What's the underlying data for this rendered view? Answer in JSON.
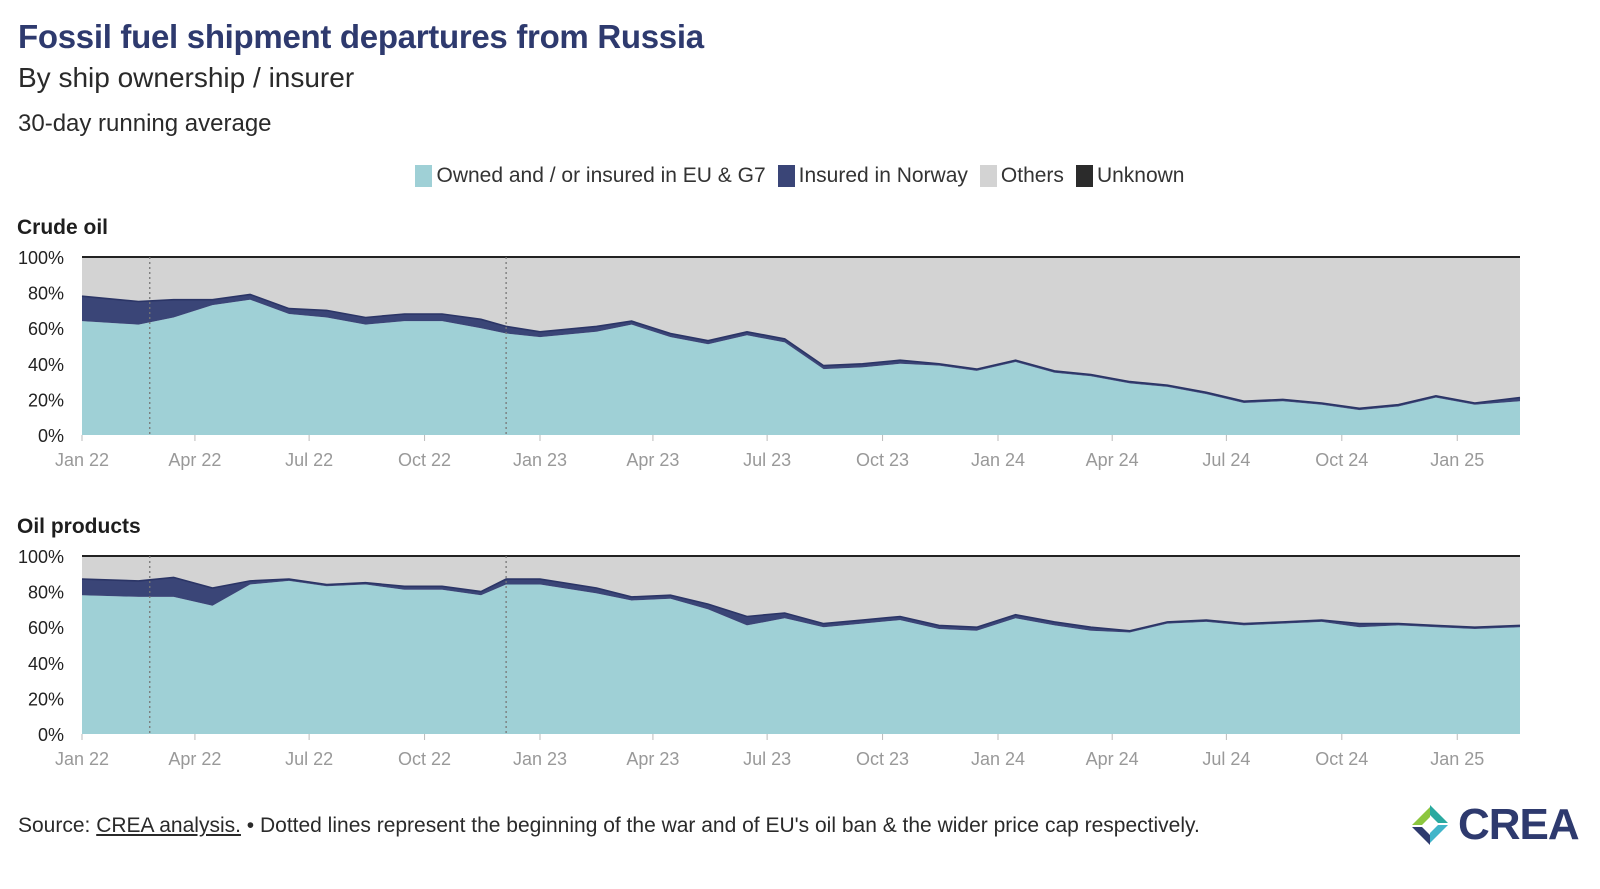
{
  "title": "Fossil fuel shipment departures from Russia",
  "subtitle": "By ship ownership / insurer",
  "note": "30-day running average",
  "legend": [
    {
      "label": "Owned and / or insured in EU & G7",
      "color": "#9fd0d6"
    },
    {
      "label": "Insured in Norway",
      "color": "#3a4577"
    },
    {
      "label": "Others",
      "color": "#d3d3d3"
    },
    {
      "label": "Unknown",
      "color": "#2b2b2b"
    }
  ],
  "footer": {
    "source_prefix": "Source: ",
    "source_link": "CREA analysis.",
    "text": " • Dotted lines represent the beginning of the war and of EU's oil ban & the wider price cap respectively."
  },
  "logo": {
    "text": "CREA"
  },
  "chart_data": [
    {
      "type": "area",
      "panel_title": "Crude oil",
      "x_ticks": [
        "Jan 22",
        "Apr 22",
        "Jul 22",
        "Oct 22",
        "Jan 23",
        "Apr 23",
        "Jul 23",
        "Oct 23",
        "Jan 24",
        "Apr 24",
        "Jul 24",
        "Oct 24",
        "Jan 25"
      ],
      "y_ticks": [
        "0%",
        "20%",
        "40%",
        "60%",
        "80%",
        "100%"
      ],
      "ylim": [
        0,
        100
      ],
      "event_lines": [
        "2022-02-24",
        "2022-12-05"
      ],
      "x": [
        "2022-01-01",
        "2022-02-15",
        "2022-03-15",
        "2022-04-15",
        "2022-05-15",
        "2022-06-15",
        "2022-07-15",
        "2022-08-15",
        "2022-09-15",
        "2022-10-15",
        "2022-11-15",
        "2022-12-05",
        "2023-01-01",
        "2023-02-15",
        "2023-03-15",
        "2023-04-15",
        "2023-05-15",
        "2023-06-15",
        "2023-07-15",
        "2023-08-15",
        "2023-09-15",
        "2023-10-15",
        "2023-11-15",
        "2023-12-15",
        "2024-01-15",
        "2024-02-15",
        "2024-03-15",
        "2024-04-15",
        "2024-05-15",
        "2024-06-15",
        "2024-07-15",
        "2024-08-15",
        "2024-09-15",
        "2024-10-15",
        "2024-11-15",
        "2024-12-15",
        "2025-01-15",
        "2025-02-20"
      ],
      "series": [
        {
          "name": "Owned and / or insured in EU & G7",
          "values": [
            64,
            62,
            66,
            73,
            76,
            68,
            66,
            62,
            64,
            64,
            60,
            57,
            55,
            58,
            62,
            55,
            51,
            56,
            52,
            37,
            38,
            40,
            39,
            36,
            41,
            35,
            33,
            29,
            27,
            23,
            18,
            19,
            17,
            14,
            16,
            21,
            17,
            19
          ]
        },
        {
          "name": "Insured in Norway",
          "values": [
            14,
            13,
            10,
            3,
            3,
            3,
            4,
            4,
            4,
            4,
            5,
            4,
            3,
            3,
            2,
            2,
            2,
            2,
            2,
            2,
            2,
            2,
            1,
            1,
            1,
            1,
            1,
            1,
            1,
            1,
            1,
            1,
            1,
            1,
            1,
            1,
            1,
            2
          ]
        },
        {
          "name": "Others",
          "values": [
            22,
            25,
            24,
            24,
            21,
            29,
            30,
            34,
            32,
            32,
            35,
            39,
            42,
            39,
            36,
            43,
            47,
            42,
            46,
            61,
            60,
            58,
            60,
            63,
            58,
            64,
            66,
            70,
            72,
            76,
            81,
            80,
            82,
            85,
            83,
            78,
            82,
            79
          ]
        },
        {
          "name": "Unknown",
          "values": [
            0,
            0,
            0,
            0,
            0,
            0,
            0,
            0,
            0,
            0,
            0,
            0,
            0,
            0,
            0,
            0,
            0,
            0,
            0,
            0,
            0,
            0,
            0,
            0,
            0,
            0,
            0,
            0,
            0,
            0,
            0,
            0,
            0,
            0,
            0,
            0,
            0,
            0
          ]
        }
      ]
    },
    {
      "type": "area",
      "panel_title": "Oil products",
      "x_ticks": [
        "Jan 22",
        "Apr 22",
        "Jul 22",
        "Oct 22",
        "Jan 23",
        "Apr 23",
        "Jul 23",
        "Oct 23",
        "Jan 24",
        "Apr 24",
        "Jul 24",
        "Oct 24",
        "Jan 25"
      ],
      "y_ticks": [
        "0%",
        "20%",
        "40%",
        "60%",
        "80%",
        "100%"
      ],
      "ylim": [
        0,
        100
      ],
      "event_lines": [
        "2022-02-24",
        "2022-12-05"
      ],
      "x": [
        "2022-01-01",
        "2022-02-15",
        "2022-03-15",
        "2022-04-15",
        "2022-05-15",
        "2022-06-15",
        "2022-07-15",
        "2022-08-15",
        "2022-09-15",
        "2022-10-15",
        "2022-11-15",
        "2022-12-05",
        "2023-01-01",
        "2023-02-15",
        "2023-03-15",
        "2023-04-15",
        "2023-05-15",
        "2023-06-15",
        "2023-07-15",
        "2023-08-15",
        "2023-09-15",
        "2023-10-15",
        "2023-11-15",
        "2023-12-15",
        "2024-01-15",
        "2024-02-15",
        "2024-03-15",
        "2024-04-15",
        "2024-05-15",
        "2024-06-15",
        "2024-07-15",
        "2024-08-15",
        "2024-09-15",
        "2024-10-15",
        "2024-11-15",
        "2024-12-15",
        "2025-01-15",
        "2025-02-20"
      ],
      "series": [
        {
          "name": "Owned and / or insured in EU & G7",
          "values": [
            78,
            77,
            77,
            72,
            84,
            86,
            83,
            84,
            81,
            81,
            78,
            84,
            84,
            79,
            75,
            76,
            70,
            61,
            65,
            60,
            62,
            64,
            59,
            58,
            65,
            61,
            58,
            57,
            62,
            63,
            61,
            62,
            63,
            60,
            61,
            60,
            59,
            60
          ]
        },
        {
          "name": "Insured in Norway",
          "values": [
            9,
            9,
            11,
            10,
            2,
            1,
            1,
            1,
            2,
            2,
            2,
            3,
            3,
            3,
            2,
            2,
            3,
            5,
            3,
            2,
            2,
            2,
            2,
            2,
            2,
            2,
            2,
            1,
            1,
            1,
            1,
            1,
            1,
            2,
            1,
            1,
            1,
            1
          ]
        },
        {
          "name": "Others",
          "values": [
            13,
            14,
            12,
            18,
            14,
            13,
            16,
            15,
            17,
            17,
            20,
            13,
            13,
            18,
            23,
            22,
            27,
            34,
            32,
            38,
            36,
            34,
            39,
            40,
            33,
            37,
            40,
            42,
            37,
            36,
            38,
            37,
            36,
            38,
            38,
            39,
            40,
            39
          ]
        },
        {
          "name": "Unknown",
          "values": [
            0,
            0,
            0,
            0,
            0,
            0,
            0,
            0,
            0,
            0,
            0,
            0,
            0,
            0,
            0,
            0,
            0,
            0,
            0,
            0,
            0,
            0,
            0,
            0,
            0,
            0,
            0,
            0,
            0,
            0,
            0,
            0,
            0,
            0,
            0,
            0,
            0,
            0
          ]
        }
      ]
    }
  ]
}
